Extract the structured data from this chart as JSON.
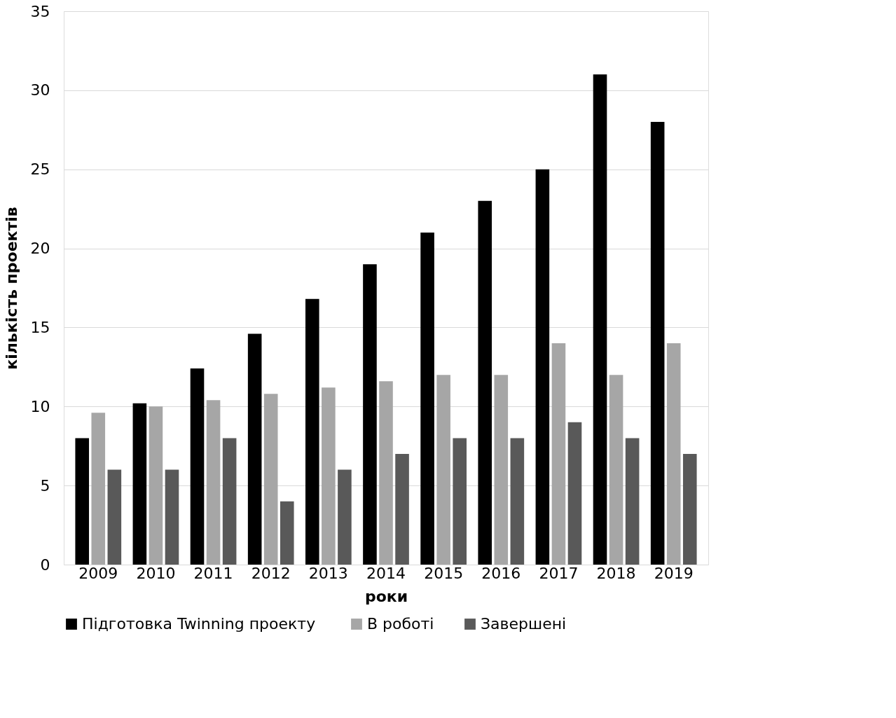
{
  "chart_data": {
    "type": "bar",
    "xlabel": "роки",
    "ylabel": "кількість проектів",
    "categories": [
      "2009",
      "2010",
      "2011",
      "2012",
      "2013",
      "2014",
      "2015",
      "2016",
      "2017",
      "2018",
      "2019"
    ],
    "series": [
      {
        "name": "Підготовка Twinning  проекту",
        "color": "#000000",
        "values": [
          8,
          10.2,
          12.4,
          14.6,
          16.8,
          19,
          21,
          23,
          25,
          31,
          28
        ]
      },
      {
        "name": "В роботі",
        "color": "#a6a6a6",
        "values": [
          9.6,
          10,
          10.4,
          10.8,
          11.2,
          11.6,
          12,
          12,
          14,
          12,
          14
        ]
      },
      {
        "name": "Завершені",
        "color": "#595959",
        "values": [
          6,
          6,
          8,
          4,
          6,
          7,
          8,
          8,
          9,
          8,
          7
        ]
      }
    ],
    "ylim": [
      0,
      35
    ],
    "yticks": [
      0,
      5,
      10,
      15,
      20,
      25,
      30,
      35
    ],
    "grid": "y",
    "legend": "bottom"
  }
}
